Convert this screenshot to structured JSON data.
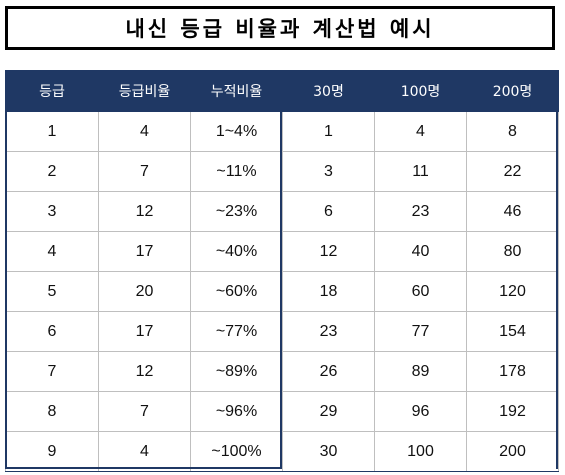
{
  "title": "내신 등급 비율과 계산법 예시",
  "table": {
    "headers": [
      "등급",
      "등급비율",
      "누적비율",
      "30명",
      "100명",
      "200명"
    ],
    "rows": [
      [
        "1",
        "4",
        "1~4%",
        "1",
        "4",
        "8"
      ],
      [
        "2",
        "7",
        "~11%",
        "3",
        "11",
        "22"
      ],
      [
        "3",
        "12",
        "~23%",
        "6",
        "23",
        "46"
      ],
      [
        "4",
        "17",
        "~40%",
        "12",
        "40",
        "80"
      ],
      [
        "5",
        "20",
        "~60%",
        "18",
        "60",
        "120"
      ],
      [
        "6",
        "17",
        "~77%",
        "23",
        "77",
        "154"
      ],
      [
        "7",
        "12",
        "~89%",
        "26",
        "89",
        "178"
      ],
      [
        "8",
        "7",
        "~96%",
        "29",
        "96",
        "192"
      ],
      [
        "9",
        "4",
        "~100%",
        "30",
        "100",
        "200"
      ]
    ]
  },
  "colors": {
    "header_bg": "#1f3864",
    "header_text": "#ffffff",
    "title_border": "#000000"
  }
}
